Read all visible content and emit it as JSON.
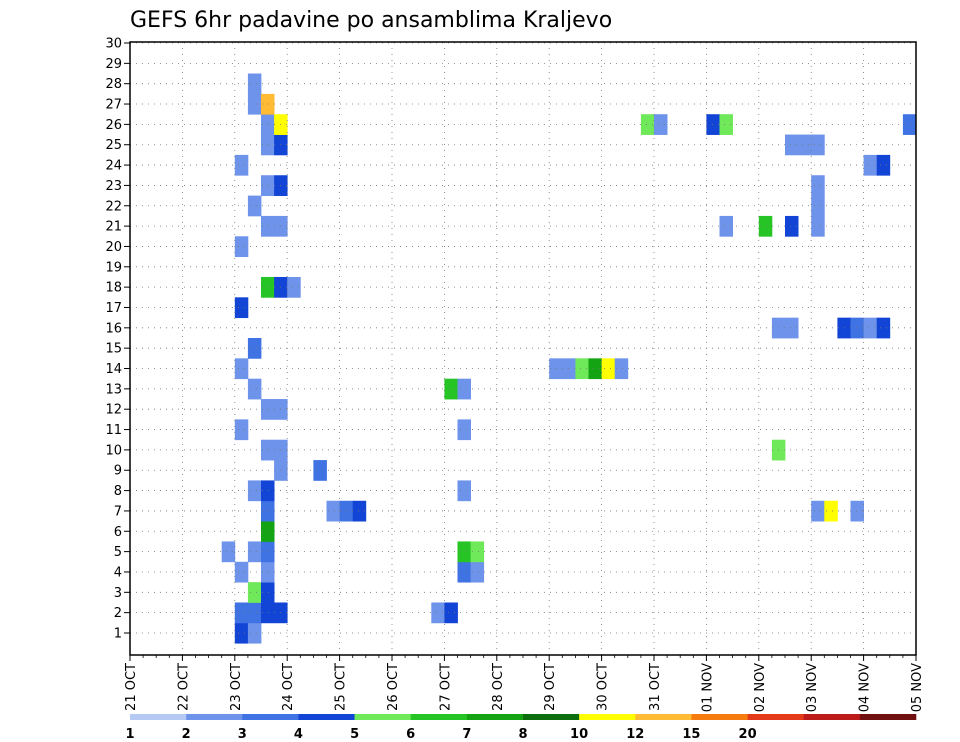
{
  "chart_data": {
    "type": "heatmap",
    "title": "GEFS 6hr padavine po ansamblima Kraljevo",
    "xlabel": "",
    "ylabel": "",
    "x_tick_labels": [
      "21 OCT",
      "22 OCT",
      "23 OCT",
      "24 OCT",
      "25 OCT",
      "26 OCT",
      "27 OCT",
      "28 OCT",
      "29 OCT",
      "30 OCT",
      "31 OCT",
      "01 NOV",
      "02 NOV",
      "03 NOV",
      "04 NOV",
      "05 NOV"
    ],
    "y_tick_labels": [
      "1",
      "2",
      "3",
      "4",
      "5",
      "6",
      "7",
      "8",
      "9",
      "10",
      "11",
      "12",
      "13",
      "14",
      "15",
      "16",
      "17",
      "18",
      "19",
      "20",
      "21",
      "22",
      "23",
      "24",
      "25",
      "26",
      "27",
      "28",
      "29",
      "30"
    ],
    "x_range": [
      "21 OCT",
      "05 NOV"
    ],
    "steps_per_day": 4,
    "members": 30,
    "grid": true,
    "colorbar": {
      "labels": [
        "1",
        "2",
        "3",
        "4",
        "5",
        "6",
        "7",
        "8",
        "10",
        "12",
        "15",
        "20"
      ],
      "colors": [
        "#b5c9f5",
        "#6e93ea",
        "#3f72e3",
        "#1245d6",
        "#6fe85a",
        "#26c424",
        "#13a313",
        "#0c6e0c",
        "#ffff00",
        "#ffbb33",
        "#f77c10",
        "#e33a1a",
        "#bd1a1a",
        "#701010"
      ]
    },
    "cells": [
      {
        "step": 8,
        "member": 1,
        "value": 3
      },
      {
        "step": 9,
        "member": 1,
        "value": 1.5
      },
      {
        "step": 8,
        "member": 2,
        "value": 2.5
      },
      {
        "step": 9,
        "member": 2,
        "value": 2.5
      },
      {
        "step": 10,
        "member": 2,
        "value": 3
      },
      {
        "step": 11,
        "member": 2,
        "value": 3
      },
      {
        "step": 9,
        "member": 3,
        "value": 4.5
      },
      {
        "step": 10,
        "member": 3,
        "value": 3
      },
      {
        "step": 8,
        "member": 4,
        "value": 1.5
      },
      {
        "step": 10,
        "member": 4,
        "value": 1.5
      },
      {
        "step": 7,
        "member": 5,
        "value": 1.5
      },
      {
        "step": 9,
        "member": 5,
        "value": 1.5
      },
      {
        "step": 10,
        "member": 5,
        "value": 2.5
      },
      {
        "step": 10,
        "member": 6,
        "value": 6.5
      },
      {
        "step": 10,
        "member": 7,
        "value": 2.5
      },
      {
        "step": 9,
        "member": 8,
        "value": 1.5
      },
      {
        "step": 10,
        "member": 8,
        "value": 3.5
      },
      {
        "step": 11,
        "member": 9,
        "value": 1.5
      },
      {
        "step": 10,
        "member": 10,
        "value": 1.5
      },
      {
        "step": 11,
        "member": 10,
        "value": 1.5
      },
      {
        "step": 8,
        "member": 11,
        "value": 1.5
      },
      {
        "step": 10,
        "member": 12,
        "value": 1.5
      },
      {
        "step": 11,
        "member": 12,
        "value": 1.5
      },
      {
        "step": 9,
        "member": 13,
        "value": 1.5
      },
      {
        "step": 8,
        "member": 14,
        "value": 1.5
      },
      {
        "step": 9,
        "member": 15,
        "value": 2.5
      },
      {
        "step": 8,
        "member": 17,
        "value": 3
      },
      {
        "step": 10,
        "member": 18,
        "value": 5.5
      },
      {
        "step": 11,
        "member": 18,
        "value": 3.5
      },
      {
        "step": 12,
        "member": 18,
        "value": 1.5
      },
      {
        "step": 8,
        "member": 20,
        "value": 1.5
      },
      {
        "step": 10,
        "member": 21,
        "value": 1.5
      },
      {
        "step": 11,
        "member": 21,
        "value": 1.5
      },
      {
        "step": 9,
        "member": 22,
        "value": 1.5
      },
      {
        "step": 10,
        "member": 23,
        "value": 1.5
      },
      {
        "step": 11,
        "member": 23,
        "value": 3.5
      },
      {
        "step": 8,
        "member": 24,
        "value": 1.5
      },
      {
        "step": 10,
        "member": 25,
        "value": 1.5
      },
      {
        "step": 11,
        "member": 25,
        "value": 3.5
      },
      {
        "step": 10,
        "member": 26,
        "value": 1.5
      },
      {
        "step": 11,
        "member": 26,
        "value": 9
      },
      {
        "step": 9,
        "member": 27,
        "value": 1.5
      },
      {
        "step": 10,
        "member": 27,
        "value": 10.5
      },
      {
        "step": 9,
        "member": 28,
        "value": 1.5
      },
      {
        "step": 15,
        "member": 7,
        "value": 1.5
      },
      {
        "step": 16,
        "member": 7,
        "value": 2.5
      },
      {
        "step": 17,
        "member": 7,
        "value": 3.5
      },
      {
        "step": 14,
        "member": 9,
        "value": 2.5
      },
      {
        "step": 23,
        "member": 2,
        "value": 1.5
      },
      {
        "step": 24,
        "member": 2,
        "value": 3.5
      },
      {
        "step": 25,
        "member": 4,
        "value": 2.5
      },
      {
        "step": 26,
        "member": 4,
        "value": 1.5
      },
      {
        "step": 24,
        "member": 13,
        "value": 5.5
      },
      {
        "step": 25,
        "member": 13,
        "value": 1.5
      },
      {
        "step": 25,
        "member": 11,
        "value": 1.5
      },
      {
        "step": 25,
        "member": 8,
        "value": 1.5
      },
      {
        "step": 25,
        "member": 5,
        "value": 5.5
      },
      {
        "step": 26,
        "member": 5,
        "value": 4.5
      },
      {
        "step": 32,
        "member": 14,
        "value": 1.5
      },
      {
        "step": 33,
        "member": 14,
        "value": 1.5
      },
      {
        "step": 34,
        "member": 14,
        "value": 4.5
      },
      {
        "step": 35,
        "member": 14,
        "value": 6.5
      },
      {
        "step": 36,
        "member": 14,
        "value": 9
      },
      {
        "step": 37,
        "member": 14,
        "value": 1.5
      },
      {
        "step": 39,
        "member": 26,
        "value": 4.5
      },
      {
        "step": 40,
        "member": 26,
        "value": 1.5
      },
      {
        "step": 44,
        "member": 26,
        "value": 3.5
      },
      {
        "step": 45,
        "member": 26,
        "value": 4.5
      },
      {
        "step": 45,
        "member": 21,
        "value": 1.5
      },
      {
        "step": 48,
        "member": 21,
        "value": 5.5
      },
      {
        "step": 50,
        "member": 21,
        "value": 3.5
      },
      {
        "step": 52,
        "member": 21,
        "value": 1.5
      },
      {
        "step": 49,
        "member": 10,
        "value": 4.5
      },
      {
        "step": 49,
        "member": 16,
        "value": 1.5
      },
      {
        "step": 50,
        "member": 16,
        "value": 1.5
      },
      {
        "step": 50,
        "member": 25,
        "value": 1.5
      },
      {
        "step": 51,
        "member": 25,
        "value": 1.5
      },
      {
        "step": 52,
        "member": 25,
        "value": 1.5
      },
      {
        "step": 52,
        "member": 22,
        "value": 1.5
      },
      {
        "step": 52,
        "member": 23,
        "value": 1.5
      },
      {
        "step": 52,
        "member": 7,
        "value": 1.5
      },
      {
        "step": 53,
        "member": 7,
        "value": 8
      },
      {
        "step": 55,
        "member": 7,
        "value": 1.5
      },
      {
        "step": 54,
        "member": 16,
        "value": 3.5
      },
      {
        "step": 55,
        "member": 16,
        "value": 2.5
      },
      {
        "step": 56,
        "member": 16,
        "value": 1.5
      },
      {
        "step": 57,
        "member": 16,
        "value": 3.5
      },
      {
        "step": 56,
        "member": 24,
        "value": 1.5
      },
      {
        "step": 57,
        "member": 24,
        "value": 3.5
      },
      {
        "step": 59,
        "member": 26,
        "value": 2.5
      }
    ]
  }
}
